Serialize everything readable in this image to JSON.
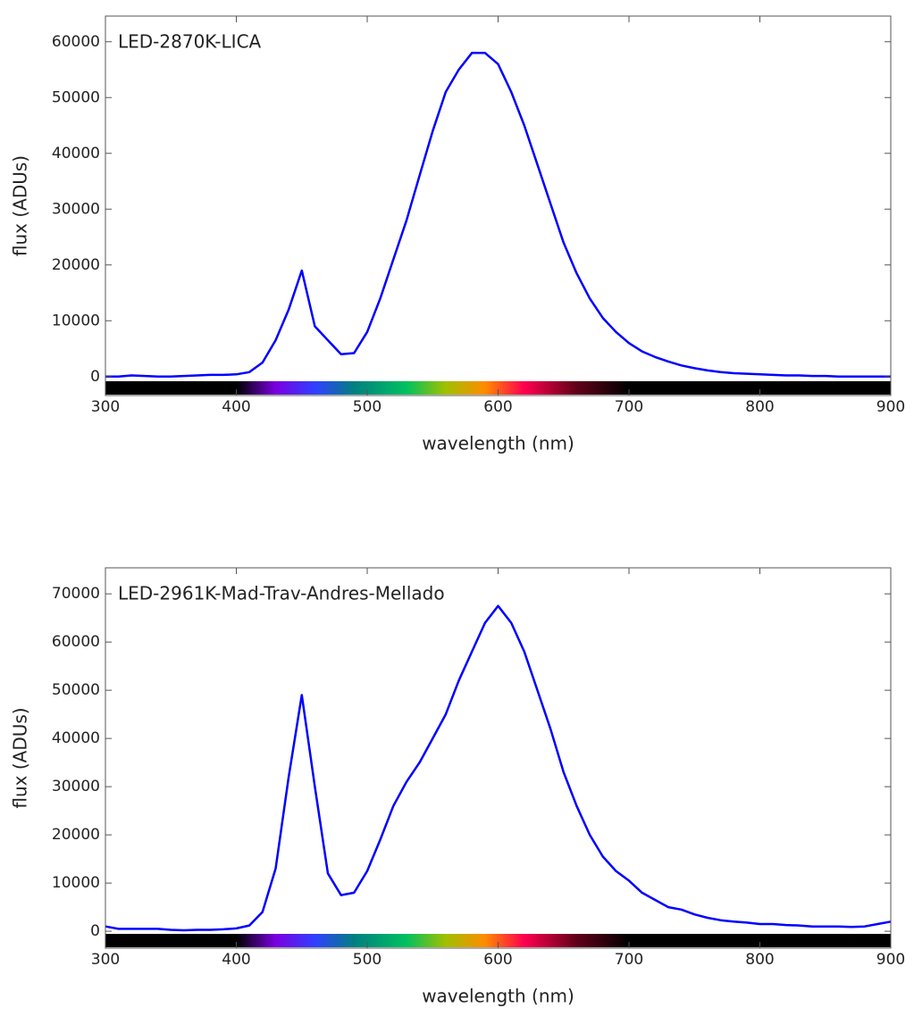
{
  "chart_data": [
    {
      "type": "line",
      "title": "LED-2870K-LICA",
      "xlabel": "wavelength (nm)",
      "ylabel": "flux (ADUs)",
      "x": [
        300,
        310,
        320,
        330,
        340,
        350,
        360,
        370,
        380,
        390,
        400,
        410,
        420,
        430,
        440,
        450,
        460,
        470,
        480,
        490,
        500,
        510,
        520,
        530,
        540,
        550,
        560,
        570,
        580,
        590,
        600,
        610,
        620,
        630,
        640,
        650,
        660,
        670,
        680,
        690,
        700,
        710,
        720,
        730,
        740,
        750,
        760,
        770,
        780,
        790,
        800,
        810,
        820,
        830,
        840,
        850,
        860,
        870,
        880,
        890,
        900
      ],
      "series": [
        {
          "name": "LED-2870K-LICA",
          "color": "#0000ff",
          "values": [
            0,
            0,
            200,
            100,
            0,
            0,
            100,
            200,
            300,
            300,
            400,
            800,
            2500,
            6500,
            12000,
            19000,
            9000,
            6500,
            4000,
            4200,
            8000,
            14000,
            21000,
            28000,
            36000,
            44000,
            51000,
            55000,
            58000,
            58000,
            56000,
            51000,
            45000,
            38000,
            31000,
            24000,
            18500,
            14000,
            10500,
            8000,
            6000,
            4500,
            3500,
            2700,
            2000,
            1500,
            1100,
            800,
            600,
            500,
            400,
            300,
            200,
            200,
            100,
            100,
            0,
            0,
            0,
            0,
            0
          ]
        }
      ],
      "xlim": [
        300,
        900
      ],
      "xticks": [
        300,
        400,
        500,
        600,
        700,
        800,
        900
      ],
      "ylim": [
        -3400,
        64600
      ],
      "yticks": [
        0,
        10000,
        20000,
        30000,
        40000,
        50000,
        60000
      ]
    },
    {
      "type": "line",
      "title": "LED-2961K-Mad-Trav-Andres-Mellado",
      "xlabel": "wavelength (nm)",
      "ylabel": "flux (ADUs)",
      "x": [
        300,
        310,
        320,
        330,
        340,
        350,
        360,
        370,
        380,
        390,
        400,
        410,
        420,
        430,
        440,
        450,
        460,
        470,
        480,
        490,
        500,
        510,
        520,
        530,
        540,
        550,
        560,
        570,
        580,
        590,
        600,
        610,
        620,
        630,
        640,
        650,
        660,
        670,
        680,
        690,
        700,
        710,
        720,
        730,
        740,
        750,
        760,
        770,
        780,
        790,
        800,
        810,
        820,
        830,
        840,
        850,
        860,
        870,
        880,
        890,
        900
      ],
      "series": [
        {
          "name": "LED-2961K-Mad-Trav-Andres-Mellado",
          "color": "#0000ff",
          "values": [
            1000,
            500,
            500,
            500,
            500,
            300,
            200,
            300,
            300,
            400,
            600,
            1200,
            4000,
            13000,
            32000,
            49000,
            30000,
            12000,
            7500,
            8000,
            12500,
            19000,
            26000,
            31000,
            35000,
            40000,
            45000,
            52000,
            58000,
            64000,
            67500,
            64000,
            58000,
            50000,
            42000,
            33000,
            26000,
            20000,
            15500,
            12500,
            10500,
            8000,
            6500,
            5000,
            4500,
            3500,
            2800,
            2300,
            2000,
            1800,
            1500,
            1500,
            1300,
            1200,
            1000,
            1000,
            1000,
            900,
            1000,
            1500,
            2000
          ]
        }
      ],
      "xlim": [
        300,
        900
      ],
      "xticks": [
        300,
        400,
        500,
        600,
        700,
        800,
        900
      ],
      "ylim": [
        -3500,
        75400
      ],
      "yticks": [
        0,
        10000,
        20000,
        30000,
        40000,
        50000,
        60000,
        70000
      ]
    }
  ]
}
